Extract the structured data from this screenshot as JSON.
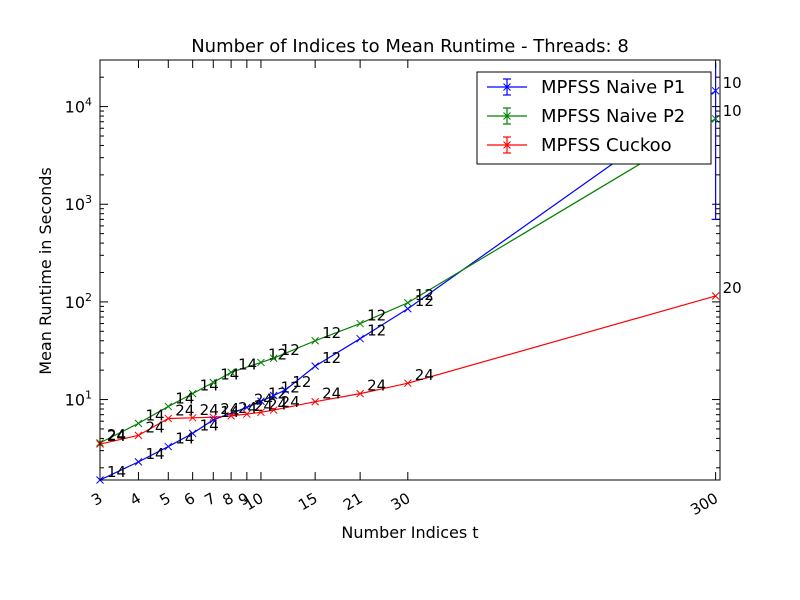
{
  "chart_data": {
    "type": "line",
    "title": "Number of Indices to Mean Runtime - Threads: 8",
    "xlabel": "Number Indices t",
    "ylabel": "Mean Runtime in Seconds",
    "x_scale": "log",
    "y_scale": "log",
    "xlim": [
      3,
      310
    ],
    "ylim": [
      1.5,
      30000
    ],
    "x_ticks": [
      3,
      4,
      5,
      6,
      7,
      8,
      9,
      10,
      15,
      21,
      30,
      300
    ],
    "x_tick_labels": [
      "3",
      "4",
      "5",
      "6",
      "7",
      "8",
      "9",
      "10",
      "15",
      "21",
      "30",
      "300"
    ],
    "y_ticks": [
      10,
      100,
      1000,
      10000
    ],
    "y_tick_labels": [
      {
        "base": "10",
        "exp": "1"
      },
      {
        "base": "10",
        "exp": "2"
      },
      {
        "base": "10",
        "exp": "3"
      },
      {
        "base": "10",
        "exp": "4"
      }
    ],
    "grid": false,
    "legend_position": "top-right",
    "series": [
      {
        "name": "MPFSS Naive P1",
        "color": "#0000ff",
        "points": [
          {
            "x": 3,
            "y": 1.5,
            "label": "14"
          },
          {
            "x": 4,
            "y": 2.3,
            "label": "14"
          },
          {
            "x": 5,
            "y": 3.3,
            "label": "14"
          },
          {
            "x": 6,
            "y": 4.5,
            "label": "14"
          },
          {
            "x": 7,
            "y": 6.2,
            "label": "14"
          },
          {
            "x": 9,
            "y": 8.3,
            "label": "24"
          },
          {
            "x": 10,
            "y": 9.6,
            "label": "12"
          },
          {
            "x": 11,
            "y": 11,
            "label": "12"
          },
          {
            "x": 12,
            "y": 12.5,
            "label": "12"
          },
          {
            "x": 15,
            "y": 22,
            "label": "12"
          },
          {
            "x": 21,
            "y": 42,
            "label": "12"
          },
          {
            "x": 30,
            "y": 85,
            "label": "12"
          },
          {
            "x": 300,
            "y": 14500,
            "label": "10",
            "err": [
              700,
              28000
            ]
          }
        ]
      },
      {
        "name": "MPFSS Naive P2",
        "color": "#008000",
        "points": [
          {
            "x": 3,
            "y": 3.6,
            "label": "24"
          },
          {
            "x": 4,
            "y": 5.7,
            "label": "14"
          },
          {
            "x": 5,
            "y": 8.5,
            "label": "14"
          },
          {
            "x": 6,
            "y": 11.5,
            "label": "14"
          },
          {
            "x": 7,
            "y": 15,
            "label": "14"
          },
          {
            "x": 8,
            "y": 19,
            "label": "14"
          },
          {
            "x": 10,
            "y": 24,
            "label": "12"
          },
          {
            "x": 11,
            "y": 26.5,
            "label": "12"
          },
          {
            "x": 15,
            "y": 40,
            "label": "12"
          },
          {
            "x": 21,
            "y": 60,
            "label": "12"
          },
          {
            "x": 30,
            "y": 98,
            "label": "12"
          },
          {
            "x": 300,
            "y": 7500,
            "label": "10"
          }
        ]
      },
      {
        "name": "MPFSS Cuckoo",
        "color": "#ff0000",
        "points": [
          {
            "x": 3,
            "y": 3.5,
            "label": "24"
          },
          {
            "x": 4,
            "y": 4.3,
            "label": "24"
          },
          {
            "x": 5,
            "y": 6.4,
            "label": "24"
          },
          {
            "x": 6,
            "y": 6.5,
            "label": "24"
          },
          {
            "x": 7,
            "y": 6.6,
            "label": "24"
          },
          {
            "x": 8,
            "y": 6.8,
            "label": "24"
          },
          {
            "x": 9,
            "y": 7.1,
            "label": "24"
          },
          {
            "x": 10,
            "y": 7.4,
            "label": "24"
          },
          {
            "x": 11,
            "y": 7.8,
            "label": "24"
          },
          {
            "x": 15,
            "y": 9.5,
            "label": "24"
          },
          {
            "x": 21,
            "y": 11.5,
            "label": "24"
          },
          {
            "x": 30,
            "y": 14.7,
            "label": "24"
          },
          {
            "x": 300,
            "y": 115,
            "label": "20"
          }
        ]
      }
    ]
  }
}
